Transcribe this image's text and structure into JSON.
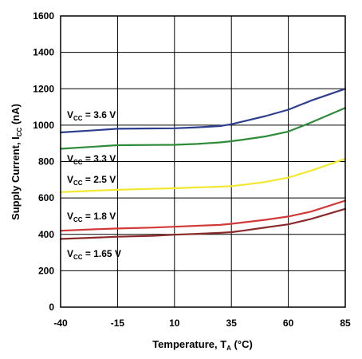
{
  "chart_data": {
    "type": "line",
    "xlabel_main": "Temperature, T",
    "xlabel_sub": "A",
    "xlabel_unit": " (°C)",
    "ylabel_main": "Supply Current, I",
    "ylabel_sub": "CC",
    "ylabel_unit": " (nA)",
    "xlim": [
      -40,
      85
    ],
    "ylim": [
      0,
      1600
    ],
    "x_ticks": [
      "-40",
      "-15",
      "10",
      "35",
      "60",
      "85"
    ],
    "y_ticks": [
      "0",
      "200",
      "400",
      "600",
      "800",
      "1000",
      "1200",
      "1400",
      "1600"
    ],
    "grid": true,
    "series": [
      {
        "label_main": "V",
        "label_sub": "CC",
        "label_value": " = 3.6 V",
        "color": "#2e3f8f",
        "x": [
          -40,
          -25,
          -15,
          0,
          10,
          20,
          30,
          35,
          40,
          50,
          60,
          70,
          85
        ],
        "y": [
          960,
          972,
          980,
          982,
          983,
          988,
          995,
          1005,
          1020,
          1050,
          1085,
          1135,
          1200
        ]
      },
      {
        "label_main": "V",
        "label_sub": "CC",
        "label_value": " = 3.3 V",
        "color": "#2e8b3a",
        "x": [
          -40,
          -25,
          -15,
          0,
          10,
          20,
          30,
          35,
          40,
          50,
          60,
          70,
          85
        ],
        "y": [
          870,
          882,
          890,
          891,
          892,
          897,
          905,
          912,
          920,
          938,
          965,
          1015,
          1095
        ]
      },
      {
        "label_main": "V",
        "label_sub": "CC",
        "label_value": " = 2.5 V",
        "color": "#f2e830",
        "x": [
          -40,
          -25,
          -15,
          0,
          10,
          20,
          30,
          35,
          40,
          50,
          60,
          70,
          85
        ],
        "y": [
          632,
          640,
          645,
          650,
          653,
          658,
          662,
          665,
          672,
          688,
          712,
          750,
          815
        ]
      },
      {
        "label_main": "V",
        "label_sub": "CC",
        "label_value": " = 1.8 V",
        "color": "#d23a3a",
        "x": [
          -40,
          -25,
          -15,
          0,
          10,
          20,
          30,
          35,
          40,
          50,
          60,
          70,
          85
        ],
        "y": [
          420,
          428,
          432,
          437,
          442,
          447,
          452,
          458,
          465,
          480,
          498,
          525,
          585
        ]
      },
      {
        "label_main": "V",
        "label_sub": "CC",
        "label_value": " = 1.65 V",
        "color": "#8b2a2a",
        "x": [
          -40,
          -25,
          -15,
          0,
          10,
          20,
          30,
          35,
          40,
          50,
          60,
          70,
          85
        ],
        "y": [
          375,
          382,
          387,
          392,
          398,
          403,
          408,
          412,
          420,
          438,
          455,
          485,
          540
        ]
      }
    ]
  }
}
